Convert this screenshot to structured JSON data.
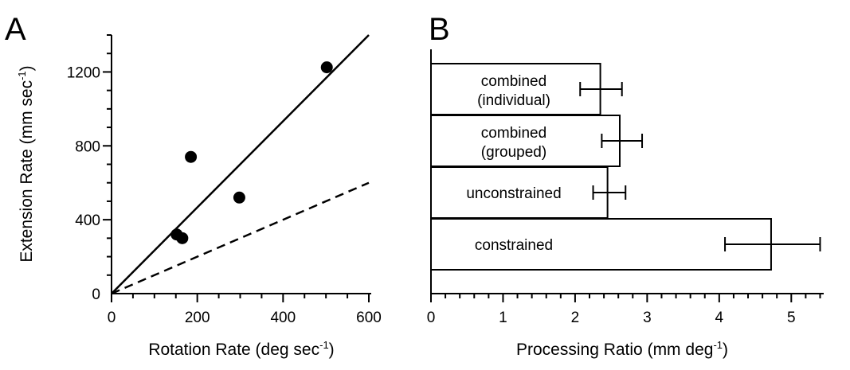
{
  "chart_data": [
    {
      "type": "scatter",
      "panel": "A",
      "xlabel": "Rotation Rate (deg sec",
      "xlabel_sup": "-1",
      "xlabel_end": ")",
      "ylabel": "Extension Rate (mm sec",
      "ylabel_sup": "-1",
      "ylabel_end": ")",
      "xlim": [
        0,
        600
      ],
      "ylim": [
        0,
        1400
      ],
      "xticks": [
        0,
        200,
        400,
        600
      ],
      "yticks": [
        0,
        400,
        800,
        1200
      ],
      "x_minor_step": 50,
      "y_minor_step": 100,
      "points": [
        {
          "x": 152,
          "y": 320
        },
        {
          "x": 165,
          "y": 300
        },
        {
          "x": 185,
          "y": 740
        },
        {
          "x": 298,
          "y": 520
        },
        {
          "x": 502,
          "y": 1225
        }
      ],
      "lines": [
        {
          "style": "solid",
          "from": [
            0,
            0
          ],
          "to": [
            600,
            1400
          ]
        },
        {
          "style": "dashed",
          "from": [
            0,
            0
          ],
          "to": [
            600,
            600
          ]
        }
      ],
      "grid": false,
      "colors": {
        "points": "#000000",
        "lines": "#000000"
      }
    },
    {
      "type": "bar",
      "orientation": "horizontal",
      "panel": "B",
      "xlabel": "Processing Ratio (mm deg",
      "xlabel_sup": "-1",
      "xlabel_end": ")",
      "xlim": [
        0,
        5.45
      ],
      "xticks": [
        0,
        1,
        2,
        3,
        4,
        5
      ],
      "x_minor_step": 0.2,
      "bars": [
        {
          "label_lines": [
            "combined",
            "(individual)"
          ],
          "value": 2.35,
          "err_low": 2.07,
          "err_high": 2.65
        },
        {
          "label_lines": [
            "combined",
            "(grouped)"
          ],
          "value": 2.62,
          "err_low": 2.37,
          "err_high": 2.93
        },
        {
          "label_lines": [
            "unconstrained"
          ],
          "value": 2.45,
          "err_low": 2.25,
          "err_high": 2.7
        },
        {
          "label_lines": [
            "constrained"
          ],
          "value": 4.72,
          "err_low": 4.08,
          "err_high": 5.4
        }
      ],
      "grid": false,
      "colors": {
        "bar_fill": "#ffffff",
        "bar_stroke": "#000000"
      }
    }
  ]
}
